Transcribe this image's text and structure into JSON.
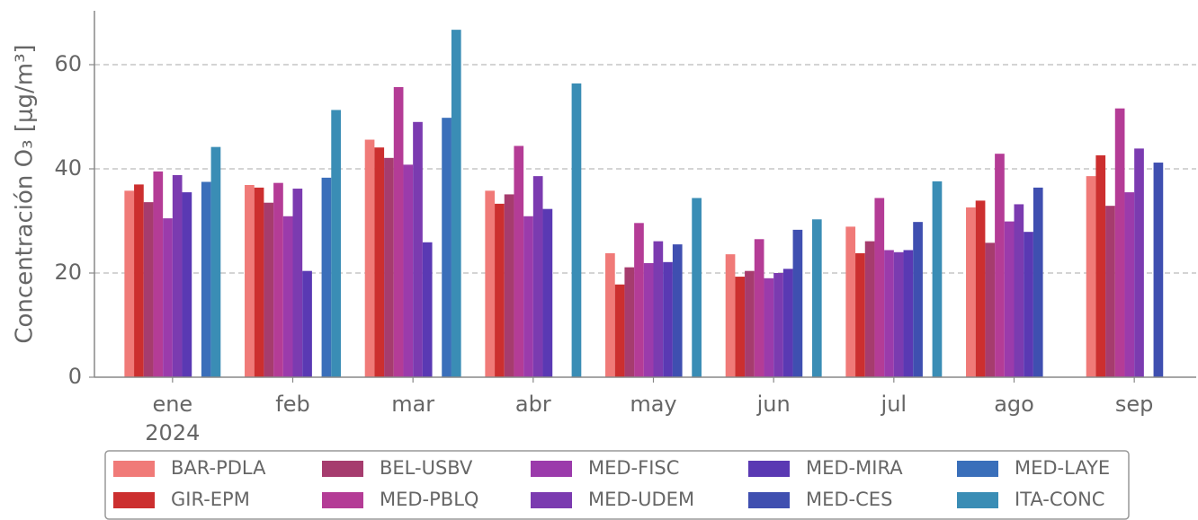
{
  "chart_data": {
    "type": "bar",
    "ylabel": "Concentración O₃ [μg/m³]",
    "categories": [
      "ene",
      "feb",
      "mar",
      "abr",
      "may",
      "jun",
      "jul",
      "ago",
      "sep"
    ],
    "xtick_sublabel": "2024",
    "ylim": [
      0,
      70
    ],
    "yticks": [
      0,
      20,
      40,
      60
    ],
    "grid": true,
    "legend": "lower center",
    "series": [
      {
        "name": "BAR-PDLA",
        "color": "#f07a78",
        "values": [
          35.8,
          36.9,
          45.6,
          35.8,
          23.8,
          23.6,
          28.9,
          32.6,
          38.6
        ]
      },
      {
        "name": "GIR-EPM",
        "color": "#cc2f2f",
        "values": [
          37.0,
          36.4,
          44.1,
          33.3,
          17.8,
          19.3,
          23.8,
          33.9,
          42.6
        ]
      },
      {
        "name": "BEL-USBV",
        "color": "#a63c6e",
        "values": [
          33.6,
          33.5,
          42.1,
          35.1,
          21.1,
          20.4,
          26.1,
          25.8,
          32.9
        ]
      },
      {
        "name": "MED-PBLQ",
        "color": "#b43c96",
        "values": [
          39.5,
          37.3,
          55.7,
          44.4,
          29.6,
          26.5,
          34.4,
          42.9,
          51.6
        ]
      },
      {
        "name": "MED-FISC",
        "color": "#9b3bab",
        "values": [
          30.5,
          30.9,
          40.8,
          30.9,
          21.9,
          19.0,
          24.4,
          29.9,
          35.5
        ]
      },
      {
        "name": "MED-UDEM",
        "color": "#7b3bb0",
        "values": [
          38.8,
          36.2,
          49.0,
          38.6,
          26.1,
          20.0,
          24.0,
          33.2,
          43.9
        ]
      },
      {
        "name": "MED-MIRA",
        "color": "#5a39b3",
        "values": [
          35.5,
          20.4,
          25.9,
          32.3,
          22.1,
          20.8,
          24.4,
          27.9,
          null
        ]
      },
      {
        "name": "MED-CES",
        "color": "#3f4fb0",
        "values": [
          null,
          null,
          null,
          null,
          25.5,
          28.3,
          29.8,
          36.4,
          41.2
        ]
      },
      {
        "name": "MED-LAYE",
        "color": "#3a6fba",
        "values": [
          37.5,
          38.3,
          49.8,
          null,
          null,
          null,
          null,
          null,
          null
        ]
      },
      {
        "name": "ITA-CONC",
        "color": "#3a8db5",
        "values": [
          44.2,
          51.3,
          66.7,
          56.4,
          34.4,
          30.3,
          37.6,
          null,
          null
        ]
      }
    ]
  }
}
